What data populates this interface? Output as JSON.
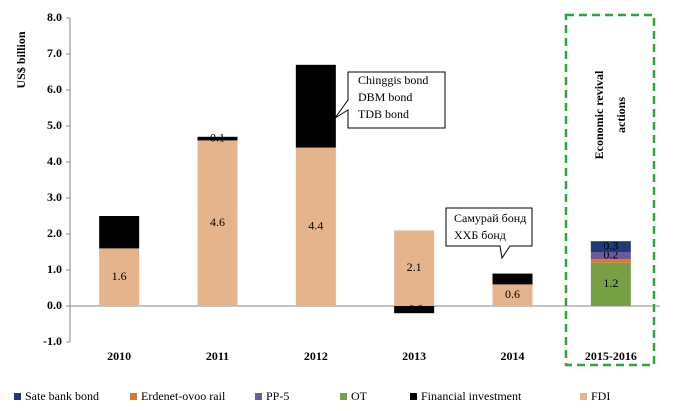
{
  "chart_data": {
    "type": "stacked_bar",
    "y_label": "US$ billion",
    "categories": [
      "2010",
      "2011",
      "2012",
      "2013",
      "2014",
      "2015-2016"
    ],
    "ylim": [
      -1,
      8
    ],
    "yticks": [
      {
        "value": -1,
        "label": "-1.0"
      },
      {
        "value": 0,
        "label": "0.0"
      },
      {
        "value": 1,
        "label": "1.0"
      },
      {
        "value": 2,
        "label": "2.0"
      },
      {
        "value": 3,
        "label": "3.0"
      },
      {
        "value": 4,
        "label": "4.0"
      },
      {
        "value": 5,
        "label": "5.0"
      },
      {
        "value": 6,
        "label": "6.0"
      },
      {
        "value": 7,
        "label": "7.0"
      },
      {
        "value": 8,
        "label": "8.0"
      }
    ],
    "legend": "bottom",
    "stack_order": [
      5,
      3,
      1,
      2,
      4,
      0
    ],
    "series": [
      {
        "name": "Sate bank bond",
        "color": "#1f3a78",
        "values": [
          null,
          null,
          null,
          null,
          null,
          0.3
        ],
        "value_labels": [
          null,
          null,
          null,
          null,
          null,
          "0.3"
        ]
      },
      {
        "name": "Erdenet-ovoo rail",
        "color": "#d9782f",
        "values": [
          null,
          null,
          null,
          null,
          null,
          0.1
        ],
        "value_labels": [
          null,
          null,
          null,
          null,
          null,
          null
        ]
      },
      {
        "name": "PP-5",
        "color": "#6f5a97",
        "values": [
          null,
          null,
          null,
          null,
          null,
          0.2
        ],
        "value_labels": [
          null,
          null,
          null,
          null,
          null,
          "0.2"
        ]
      },
      {
        "name": "OT",
        "color": "#77a045",
        "values": [
          null,
          null,
          null,
          null,
          null,
          1.2
        ],
        "value_labels": [
          null,
          null,
          null,
          null,
          null,
          "1.2"
        ]
      },
      {
        "name": "Financial investment",
        "color": "#000000",
        "values": [
          0.9,
          0.1,
          2.3,
          -0.2,
          0.3,
          null
        ],
        "value_labels": [
          "0.9",
          "0.1",
          "2.3",
          "-0.2",
          "0.3",
          null
        ]
      },
      {
        "name": "FDI",
        "color": "#e6b48c",
        "values": [
          1.6,
          4.6,
          4.4,
          2.1,
          0.6,
          null
        ],
        "value_labels": [
          "1.6",
          "4.6",
          "4.4",
          "2.1",
          "0.6",
          null
        ]
      }
    ],
    "annotations": [
      {
        "lines": [
          "Chinggis bond",
          "DBM bond",
          "TDB bond"
        ]
      },
      {
        "lines": [
          "Самурай бонд",
          "ХХБ бонд"
        ]
      },
      {
        "lines": [
          "Economic revival",
          "actions"
        ]
      }
    ]
  }
}
